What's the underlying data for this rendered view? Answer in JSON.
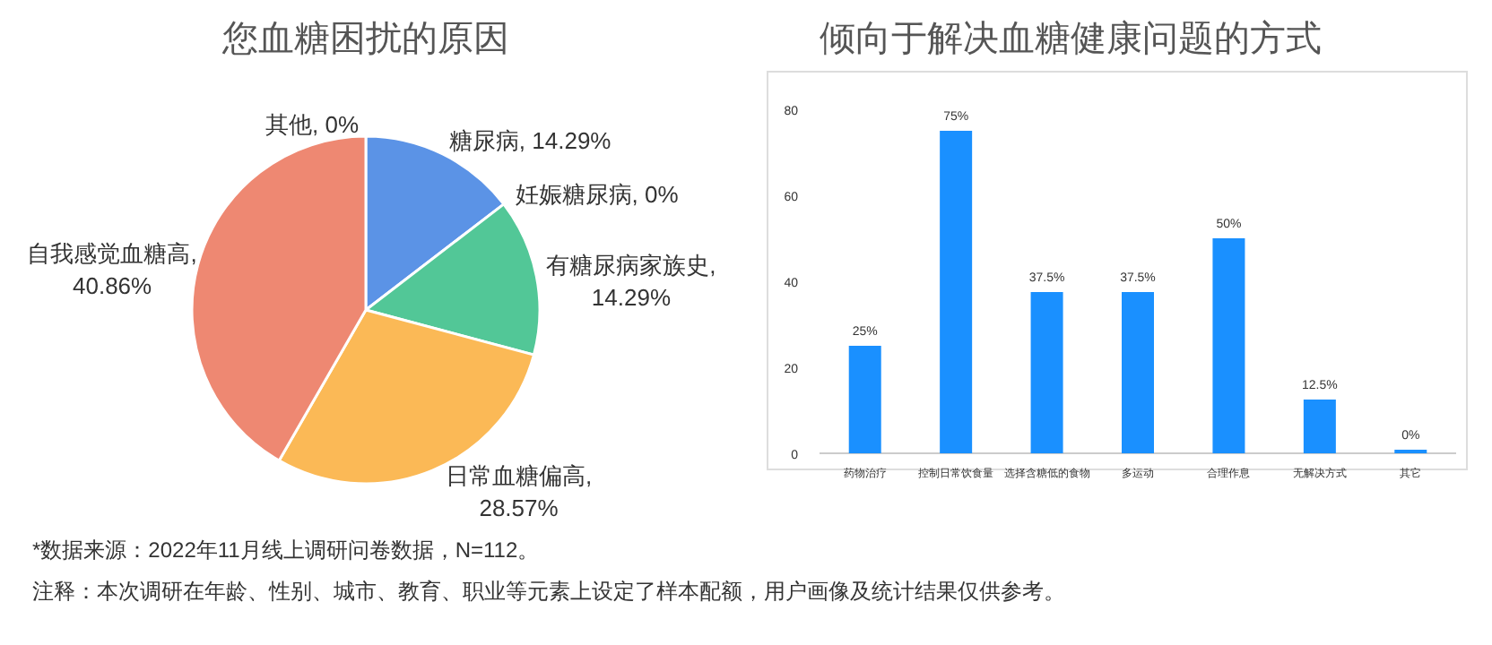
{
  "chart_data": [
    {
      "type": "pie",
      "title": "您血糖困扰的原因",
      "categories": [
        "糖尿病",
        "妊娠糖尿病",
        "有糖尿病家族史",
        "日常血糖偏高",
        "自我感觉血糖高",
        "其他"
      ],
      "values": [
        14.29,
        0,
        14.29,
        28.57,
        40.86,
        0
      ],
      "colors": [
        "#5b93e6",
        "#9b7fd1",
        "#52c797",
        "#fbb956",
        "#ee8872",
        "#8ccbe8"
      ],
      "value_labels": [
        ", 14.29%",
        ", 0%",
        ",\n14.29%",
        ",\n28.57%",
        ",\n40.86%",
        ", 0%"
      ],
      "annotations": [
        "*数据来源：2022年11月线上调研问卷数据，N=112。",
        "注释：本次调研在年龄、性别、城市、教育、职业等元素上设定了样本配额，用户画像及统计结果仅供参考。"
      ]
    },
    {
      "type": "bar",
      "title": "倾向于解决血糖健康问题的方式",
      "categories": [
        "药物治疗",
        "控制日常饮食量",
        "选择含糖低的食物",
        "多运动",
        "合理作息",
        "无解决方式",
        "其它"
      ],
      "values": [
        25,
        75,
        37.5,
        37.5,
        50,
        12.5,
        0
      ],
      "color": "#1a90ff",
      "value_labels": [
        "25%",
        "75%",
        "37.5%",
        "37.5%",
        "50%",
        "12.5%",
        "0%"
      ],
      "ylim": [
        0,
        80
      ],
      "yticks": [
        0,
        20,
        40,
        60,
        80
      ],
      "grid": false
    }
  ]
}
